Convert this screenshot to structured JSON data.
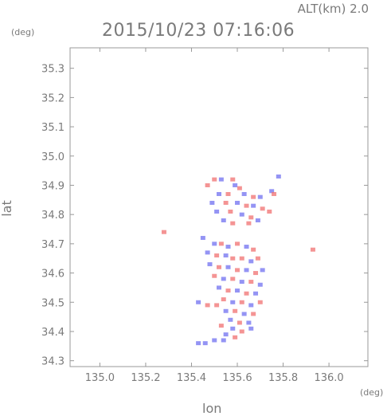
{
  "header": {
    "alt_label": "ALT(km) 2.0",
    "datetime": "2015/10/23 07:16:06"
  },
  "axes": {
    "x_unit": "(deg)",
    "y_unit": "(deg)",
    "x_label": "lon",
    "y_label": "lat"
  },
  "chart_data": {
    "type": "heatmap",
    "title": "2015/10/23 07:16:06",
    "subtitle": "ALT(km) 2.0",
    "xlabel": "lon",
    "ylabel": "lat",
    "x_unit": "(deg)",
    "y_unit": "(deg)",
    "xlim": [
      134.87,
      136.17
    ],
    "ylim": [
      34.28,
      35.37
    ],
    "x_ticks": [
      "135.0",
      "135.2",
      "135.4",
      "135.6",
      "135.8",
      "136.0"
    ],
    "y_ticks": [
      "34.3",
      "34.4",
      "34.5",
      "34.6",
      "34.7",
      "34.8",
      "34.9",
      "35.0",
      "35.1",
      "35.2",
      "35.3"
    ],
    "grid": false,
    "colors": {
      "positive": "#f07070",
      "negative": "#7070f0",
      "frame": "#999999"
    },
    "cells": [
      [
        135.5,
        34.92,
        1
      ],
      [
        135.53,
        34.92,
        -1
      ],
      [
        135.58,
        34.92,
        1
      ],
      [
        135.78,
        34.93,
        -1
      ],
      [
        135.47,
        34.9,
        1
      ],
      [
        135.59,
        34.9,
        -1
      ],
      [
        135.61,
        34.89,
        1
      ],
      [
        135.75,
        34.88,
        -1
      ],
      [
        135.52,
        34.87,
        -1
      ],
      [
        135.56,
        34.87,
        1
      ],
      [
        135.63,
        34.87,
        -1
      ],
      [
        135.67,
        34.86,
        1
      ],
      [
        135.7,
        34.86,
        -1
      ],
      [
        135.76,
        34.87,
        1
      ],
      [
        135.49,
        34.84,
        -1
      ],
      [
        135.55,
        34.84,
        1
      ],
      [
        135.6,
        34.84,
        -1
      ],
      [
        135.64,
        34.83,
        1
      ],
      [
        135.67,
        34.83,
        -1
      ],
      [
        135.71,
        34.82,
        1
      ],
      [
        135.74,
        34.81,
        1
      ],
      [
        135.51,
        34.81,
        -1
      ],
      [
        135.57,
        34.81,
        1
      ],
      [
        135.62,
        34.8,
        -1
      ],
      [
        135.66,
        34.79,
        1
      ],
      [
        135.69,
        34.78,
        -1
      ],
      [
        135.54,
        34.78,
        -1
      ],
      [
        135.58,
        34.77,
        1
      ],
      [
        135.65,
        34.77,
        1
      ],
      [
        135.28,
        34.74,
        1
      ],
      [
        135.45,
        34.72,
        -1
      ],
      [
        135.5,
        34.7,
        -1
      ],
      [
        135.53,
        34.7,
        1
      ],
      [
        135.56,
        34.69,
        -1
      ],
      [
        135.6,
        34.7,
        1
      ],
      [
        135.64,
        34.69,
        -1
      ],
      [
        135.67,
        34.68,
        1
      ],
      [
        135.93,
        34.68,
        1
      ],
      [
        135.47,
        34.67,
        -1
      ],
      [
        135.51,
        34.66,
        1
      ],
      [
        135.55,
        34.66,
        -1
      ],
      [
        135.58,
        34.65,
        1
      ],
      [
        135.62,
        34.65,
        1
      ],
      [
        135.66,
        34.64,
        -1
      ],
      [
        135.69,
        34.65,
        1
      ],
      [
        135.48,
        34.63,
        -1
      ],
      [
        135.52,
        34.62,
        1
      ],
      [
        135.56,
        34.62,
        -1
      ],
      [
        135.6,
        34.61,
        1
      ],
      [
        135.64,
        34.61,
        -1
      ],
      [
        135.68,
        34.6,
        1
      ],
      [
        135.71,
        34.61,
        -1
      ],
      [
        135.5,
        34.59,
        1
      ],
      [
        135.54,
        34.58,
        -1
      ],
      [
        135.58,
        34.58,
        1
      ],
      [
        135.62,
        34.57,
        -1
      ],
      [
        135.66,
        34.57,
        1
      ],
      [
        135.7,
        34.56,
        -1
      ],
      [
        135.52,
        34.55,
        -1
      ],
      [
        135.56,
        34.54,
        1
      ],
      [
        135.6,
        34.54,
        -1
      ],
      [
        135.64,
        34.53,
        1
      ],
      [
        135.68,
        34.53,
        -1
      ],
      [
        135.54,
        34.51,
        1
      ],
      [
        135.58,
        34.5,
        -1
      ],
      [
        135.62,
        34.5,
        1
      ],
      [
        135.66,
        34.49,
        -1
      ],
      [
        135.7,
        34.5,
        1
      ],
      [
        135.43,
        34.5,
        -1
      ],
      [
        135.47,
        34.49,
        1
      ],
      [
        135.51,
        34.49,
        1
      ],
      [
        135.55,
        34.47,
        -1
      ],
      [
        135.59,
        34.47,
        1
      ],
      [
        135.63,
        34.46,
        -1
      ],
      [
        135.67,
        34.46,
        1
      ],
      [
        135.57,
        34.44,
        -1
      ],
      [
        135.61,
        34.43,
        1
      ],
      [
        135.65,
        34.43,
        -1
      ],
      [
        135.53,
        34.42,
        1
      ],
      [
        135.58,
        34.41,
        -1
      ],
      [
        135.62,
        34.4,
        1
      ],
      [
        135.66,
        34.41,
        -1
      ],
      [
        135.55,
        34.39,
        -1
      ],
      [
        135.59,
        34.38,
        1
      ],
      [
        135.5,
        34.37,
        -1
      ],
      [
        135.54,
        34.37,
        -1
      ],
      [
        135.46,
        34.36,
        -1
      ],
      [
        135.43,
        34.36,
        -1
      ]
    ]
  }
}
